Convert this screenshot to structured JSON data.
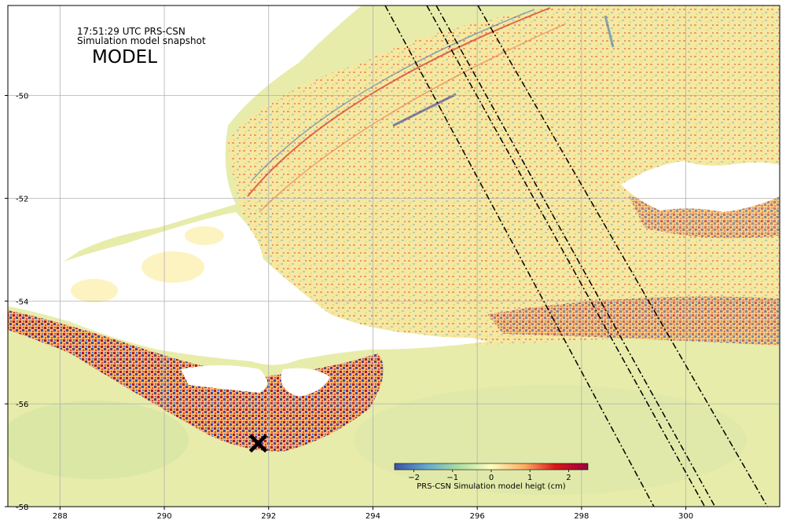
{
  "map": {
    "time_label": "17:51:29 UTC PRS-CSN",
    "subtitle": "Simulation model snapshot",
    "panel_label": "MODEL",
    "x_ticks": [
      288,
      290,
      292,
      294,
      296,
      298,
      300
    ],
    "y_ticks": [
      -50,
      -52,
      -54,
      -56,
      -58
    ],
    "lon_range": [
      287.0,
      301.8
    ],
    "lat_range": [
      -58.0,
      -48.25
    ],
    "grid": true,
    "marker": {
      "symbol": "×",
      "lon": 291.8,
      "lat": -56.75
    }
  },
  "colorbar": {
    "label": "PRS-CSN Simulation model heigt (cm)",
    "ticks": [
      -2,
      -1,
      0,
      1,
      2
    ],
    "tick_labels": [
      "−2",
      "−1",
      "0",
      "1",
      "2"
    ],
    "range": [
      -2.5,
      2.5
    ],
    "colormap": "Spectral_r",
    "colors": [
      "#3b53a4",
      "#67a9cf",
      "#abdda4",
      "#fefebe",
      "#fdae61",
      "#d7191c",
      "#9e0142"
    ]
  },
  "track_lines_count": 4
}
